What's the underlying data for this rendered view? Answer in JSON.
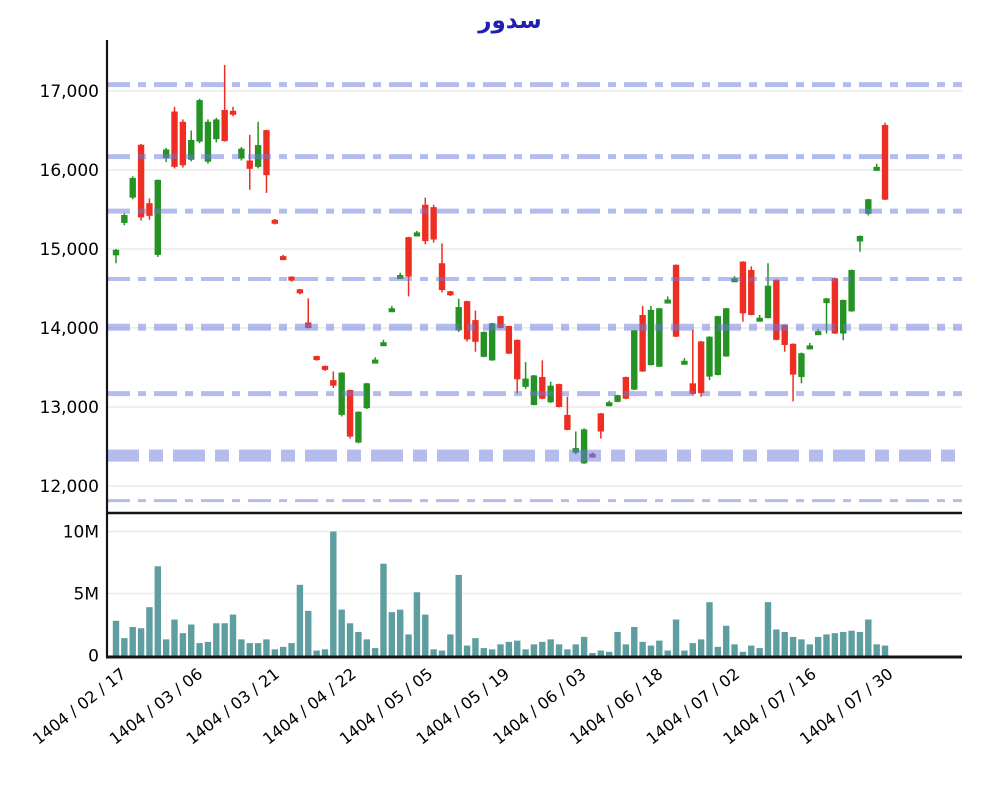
{
  "title": "سدور",
  "chart_data": {
    "type": "candlestick_with_volume",
    "title": "سدور",
    "price_axis": {
      "tick_labels": [
        "17,000",
        "16,000",
        "15,000",
        "14,000",
        "13,000",
        "12,000"
      ],
      "tick_values": [
        17000,
        16000,
        15000,
        14000,
        13000,
        12000
      ],
      "ylim": [
        11670,
        17650
      ],
      "grid": true
    },
    "volume_axis": {
      "tick_labels": [
        "10M",
        "5M",
        "0"
      ],
      "tick_values": [
        10,
        5,
        0
      ],
      "unit": "millions of shares",
      "grid": true
    },
    "x_tick_labels": [
      "1404 / 02 / 17",
      "1404 / 03 / 06",
      "1404 / 03 / 21",
      "1404 / 04 / 22",
      "1404 / 05 / 05",
      "1404 / 05 / 19",
      "1404 / 06 / 03",
      "1404 / 06 / 18",
      "1404 / 07 / 02",
      "1404 / 07 / 16",
      "1404 / 07 / 30"
    ],
    "level_lines": [
      {
        "price": 17080,
        "weight": 5
      },
      {
        "price": 16170,
        "weight": 5
      },
      {
        "price": 15480,
        "weight": 5
      },
      {
        "price": 14620,
        "weight": 4
      },
      {
        "price": 14010,
        "weight": 7
      },
      {
        "price": 13170,
        "weight": 5
      },
      {
        "price": 12385,
        "weight": 12
      },
      {
        "price": 11815,
        "weight": 3
      }
    ],
    "candles_note": "each row = [open, high, low, close, volume_in_millions]",
    "candles": [
      [
        14920,
        15000,
        14820,
        14990,
        2.8
      ],
      [
        15330,
        15450,
        15300,
        15430,
        1.4
      ],
      [
        15650,
        15920,
        15630,
        15900,
        2.3
      ],
      [
        16320,
        16330,
        15360,
        15400,
        2.2
      ],
      [
        15580,
        15640,
        15370,
        15420,
        3.9
      ],
      [
        14925,
        15880,
        14900,
        15875,
        7.2
      ],
      [
        16150,
        16280,
        16100,
        16260,
        1.3
      ],
      [
        16740,
        16800,
        16020,
        16040,
        2.9
      ],
      [
        16610,
        16640,
        16030,
        16060,
        1.8
      ],
      [
        16130,
        16500,
        16110,
        16380,
        2.5
      ],
      [
        16360,
        16900,
        16340,
        16885,
        1.0
      ],
      [
        16105,
        16640,
        16080,
        16610,
        1.1
      ],
      [
        16390,
        16660,
        16350,
        16640,
        2.6
      ],
      [
        16760,
        17330,
        16360,
        16365,
        2.6
      ],
      [
        16750,
        16800,
        16680,
        16730,
        3.3
      ],
      [
        16145,
        16290,
        16120,
        16270,
        1.3
      ],
      [
        16120,
        16445,
        15750,
        16015,
        1.0
      ],
      [
        16040,
        16610,
        16020,
        16315,
        1.0
      ],
      [
        16505,
        16510,
        15710,
        15935,
        1.3
      ],
      [
        15370,
        15380,
        15310,
        15345,
        0.5
      ],
      [
        14910,
        14925,
        14860,
        14880,
        0.7
      ],
      [
        14650,
        14655,
        14585,
        14620,
        1.0
      ],
      [
        14490,
        14495,
        14425,
        14460,
        5.7
      ],
      [
        14070,
        14375,
        13995,
        14000,
        3.6
      ],
      [
        13645,
        13650,
        13585,
        13615,
        0.4
      ],
      [
        13520,
        13525,
        13455,
        13490,
        0.5
      ],
      [
        13340,
        13450,
        13240,
        13270,
        10.0
      ],
      [
        12900,
        13440,
        12880,
        13435,
        3.7
      ],
      [
        13215,
        13220,
        12600,
        12625,
        2.6
      ],
      [
        12550,
        12945,
        12540,
        12940,
        1.9
      ],
      [
        12985,
        13305,
        12975,
        13300,
        1.3
      ],
      [
        13575,
        13630,
        13570,
        13600,
        0.6
      ],
      [
        13795,
        13850,
        13790,
        13820,
        7.4
      ],
      [
        14215,
        14280,
        14210,
        14250,
        3.5
      ],
      [
        14640,
        14700,
        14635,
        14670,
        3.7
      ],
      [
        15150,
        15155,
        14400,
        14650,
        1.7
      ],
      [
        15180,
        15230,
        15175,
        15210,
        5.1
      ],
      [
        15560,
        15650,
        15060,
        15100,
        3.3
      ],
      [
        15530,
        15560,
        15080,
        15120,
        0.5
      ],
      [
        14820,
        15070,
        14450,
        14480,
        0.4
      ],
      [
        14465,
        14470,
        14405,
        14440,
        1.7
      ],
      [
        13970,
        14370,
        13950,
        14265,
        6.5
      ],
      [
        14340,
        14345,
        13830,
        13855,
        0.8
      ],
      [
        14100,
        14220,
        13700,
        13825,
        1.4
      ],
      [
        13635,
        13955,
        13630,
        13950,
        0.6
      ],
      [
        13590,
        14065,
        13585,
        14060,
        0.5
      ],
      [
        14150,
        14155,
        13995,
        14000,
        0.9
      ],
      [
        14025,
        14030,
        13670,
        13675,
        1.1
      ],
      [
        13850,
        13855,
        13170,
        13350,
        1.2
      ],
      [
        13255,
        13570,
        13230,
        13360,
        0.5
      ],
      [
        13025,
        13405,
        13020,
        13400,
        0.9
      ],
      [
        13380,
        13590,
        13100,
        13105,
        1.1
      ],
      [
        13060,
        13320,
        13050,
        13270,
        1.3
      ],
      [
        13290,
        13295,
        12995,
        13000,
        0.9
      ],
      [
        12900,
        13130,
        12705,
        12710,
        0.5
      ],
      [
        12420,
        12690,
        12400,
        12480,
        0.9
      ],
      [
        12287,
        12730,
        12280,
        12717,
        1.5
      ],
      [
        12410,
        12425,
        12360,
        12390,
        0.2
      ],
      [
        12920,
        12925,
        12600,
        12690,
        0.4
      ],
      [
        13035,
        13080,
        13030,
        13060,
        0.3
      ],
      [
        13065,
        13155,
        13060,
        13150,
        1.9
      ],
      [
        13380,
        13385,
        13100,
        13105,
        0.9
      ],
      [
        13220,
        13975,
        13215,
        13970,
        2.3
      ],
      [
        14165,
        14280,
        13445,
        13450,
        1.1
      ],
      [
        13530,
        14280,
        13525,
        14230,
        0.8
      ],
      [
        13510,
        14255,
        13505,
        14250,
        1.2
      ],
      [
        14335,
        14400,
        14330,
        14360,
        0.4
      ],
      [
        14800,
        14805,
        13885,
        13890,
        2.9
      ],
      [
        13580,
        13620,
        13550,
        13585,
        0.4
      ],
      [
        13300,
        13980,
        13150,
        13165,
        1.0
      ],
      [
        13830,
        13835,
        13130,
        13175,
        1.3
      ],
      [
        13385,
        13895,
        13340,
        13890,
        4.3
      ],
      [
        13405,
        14155,
        13400,
        14150,
        0.7
      ],
      [
        13640,
        14255,
        13635,
        14250,
        2.4
      ],
      [
        14600,
        14655,
        14595,
        14630,
        0.9
      ],
      [
        14840,
        14845,
        14080,
        14185,
        0.3
      ],
      [
        14735,
        14780,
        14160,
        14165,
        0.8
      ],
      [
        14110,
        14165,
        14090,
        14130,
        0.6
      ],
      [
        14125,
        14820,
        14120,
        14535,
        4.3
      ],
      [
        14610,
        14615,
        13845,
        13850,
        2.1
      ],
      [
        14040,
        14045,
        13700,
        13785,
        1.9
      ],
      [
        13800,
        13805,
        13070,
        13410,
        1.5
      ],
      [
        13380,
        13690,
        13300,
        13680,
        1.3
      ],
      [
        13750,
        13810,
        13745,
        13780,
        0.9
      ],
      [
        13945,
        13985,
        13940,
        13960,
        1.5
      ],
      [
        14315,
        14380,
        13930,
        14375,
        1.7
      ],
      [
        14630,
        14635,
        13925,
        13930,
        1.8
      ],
      [
        13930,
        14360,
        13845,
        14355,
        1.9
      ],
      [
        14210,
        14740,
        14205,
        14735,
        2.0
      ],
      [
        15095,
        15170,
        14965,
        15165,
        1.9
      ],
      [
        15445,
        15635,
        15425,
        15630,
        2.9
      ],
      [
        16040,
        16080,
        15990,
        16040,
        0.9
      ],
      [
        16570,
        16600,
        15620,
        15625,
        0.8
      ]
    ],
    "dark_candle_indices": [
      57
    ],
    "colors": {
      "up_green": "#249324",
      "down_red": "#ee2e22",
      "dark_red": "#a84f7e",
      "volume_teal": "#5f9ea0",
      "level_blue_rgba": "rgba(105,120,220,0.5)",
      "title_navy": "#1f1fb4",
      "grid_gray": "#eaeaea",
      "axis_black": "#151515"
    },
    "legend": "none",
    "x_labels_rotation_deg": -38
  }
}
